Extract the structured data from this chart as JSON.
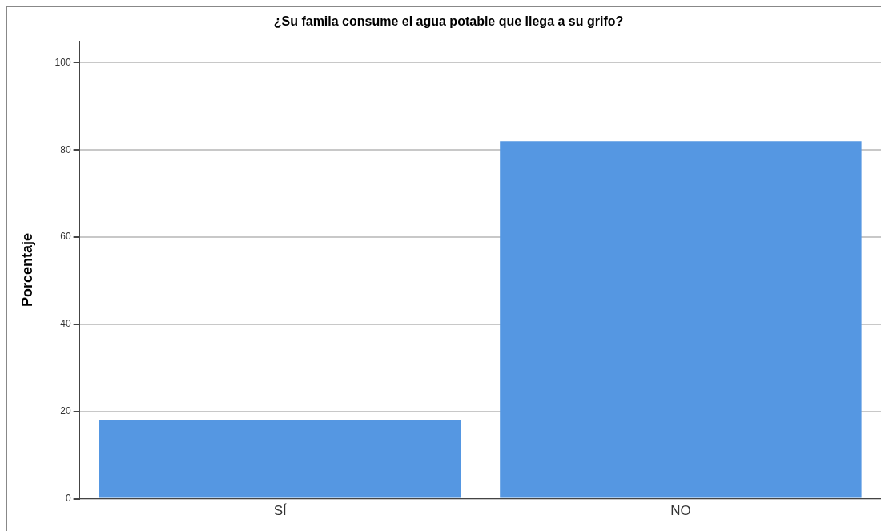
{
  "chart_data": {
    "type": "bar",
    "title": "¿Su famila consume el agua potable que llega a su grifo?",
    "ylabel": "Porcentaje",
    "categories": [
      "SÍ",
      "NO"
    ],
    "values": [
      18,
      82
    ],
    "color": "#5597e2",
    "ylim": [
      0,
      105
    ],
    "yticks": [
      0,
      20,
      40,
      60,
      80,
      100
    ],
    "grid": "y",
    "legend": false
  }
}
